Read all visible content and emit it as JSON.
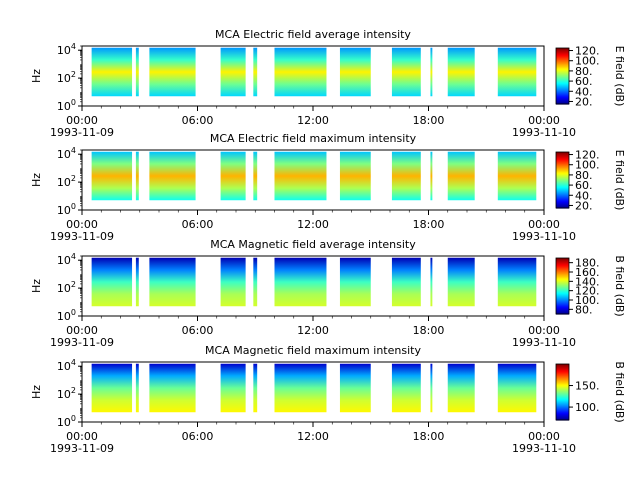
{
  "chart_data": [
    {
      "type": "heatmap",
      "title": "MCA  Electric field average intensity",
      "ylabel": "Hz",
      "y_scale": "log",
      "ylim": [
        1,
        20000
      ],
      "y_ticks": [
        {
          "exp": "0"
        },
        {
          "exp": "2"
        },
        {
          "exp": "4"
        }
      ],
      "xlim": [
        "1993-11-09 00:00",
        "1993-11-10 00:00"
      ],
      "x_ticks": [
        {
          "time": "00:00",
          "date": "1993-11-09"
        },
        {
          "time": "06:00",
          "date": ""
        },
        {
          "time": "12:00",
          "date": ""
        },
        {
          "time": "18:00",
          "date": ""
        },
        {
          "time": "00:00",
          "date": "1993-11-10"
        }
      ],
      "colorbar": {
        "label": "E field (dB)",
        "range": [
          15,
          125
        ],
        "ticks": [
          "20.",
          "40.",
          "60.",
          "80.",
          "100.",
          "120."
        ],
        "ticks_at": [
          20,
          40,
          60,
          80,
          100,
          120
        ]
      },
      "data_segments_hours": [
        [
          0.5,
          2.6
        ],
        [
          2.8,
          2.95
        ],
        [
          3.5,
          5.9
        ],
        [
          7.2,
          8.5
        ],
        [
          8.9,
          9.1
        ],
        [
          10.0,
          12.7
        ],
        [
          13.4,
          15.0
        ],
        [
          16.1,
          17.6
        ],
        [
          18.1,
          18.2
        ],
        [
          19.0,
          20.4
        ],
        [
          21.6,
          23.6
        ]
      ],
      "colormap": "jet",
      "color_by_band": [
        {
          "band": "high",
          "value": 45
        },
        {
          "band": "upper",
          "value": 62
        },
        {
          "band": "middle",
          "value": 85
        },
        {
          "band": "low",
          "value": 68
        },
        {
          "band": "bottom",
          "value": 52
        }
      ]
    },
    {
      "type": "heatmap",
      "title": "MCA  Electric field maximum intensity",
      "ylabel": "Hz",
      "y_scale": "log",
      "ylim": [
        1,
        20000
      ],
      "y_ticks": [
        {
          "exp": "0"
        },
        {
          "exp": "2"
        },
        {
          "exp": "4"
        }
      ],
      "xlim": [
        "1993-11-09 00:00",
        "1993-11-10 00:00"
      ],
      "x_ticks": [
        {
          "time": "00:00",
          "date": "1993-11-09"
        },
        {
          "time": "06:00",
          "date": ""
        },
        {
          "time": "12:00",
          "date": ""
        },
        {
          "time": "18:00",
          "date": ""
        },
        {
          "time": "00:00",
          "date": "1993-11-10"
        }
      ],
      "colorbar": {
        "label": "E field (dB)",
        "range": [
          15,
          125
        ],
        "ticks": [
          "20.",
          "40.",
          "60.",
          "80.",
          "100.",
          "120."
        ],
        "ticks_at": [
          20,
          40,
          60,
          80,
          100,
          120
        ]
      },
      "data_segments_hours": [
        [
          0.5,
          2.6
        ],
        [
          2.8,
          2.95
        ],
        [
          3.5,
          5.9
        ],
        [
          7.2,
          8.5
        ],
        [
          8.9,
          9.1
        ],
        [
          10.0,
          12.7
        ],
        [
          13.4,
          15.0
        ],
        [
          16.1,
          17.6
        ],
        [
          18.1,
          18.2
        ],
        [
          19.0,
          20.4
        ],
        [
          21.6,
          23.6
        ]
      ],
      "colormap": "jet",
      "color_by_band": [
        {
          "band": "high",
          "value": 50
        },
        {
          "band": "upper",
          "value": 70
        },
        {
          "band": "middle",
          "value": 92
        },
        {
          "band": "low",
          "value": 75
        },
        {
          "band": "bottom",
          "value": 58
        }
      ]
    },
    {
      "type": "heatmap",
      "title": "MCA  Magnetic field average intensity",
      "ylabel": "Hz",
      "y_scale": "log",
      "ylim": [
        1,
        20000
      ],
      "y_ticks": [
        {
          "exp": "0"
        },
        {
          "exp": "2"
        },
        {
          "exp": "4"
        }
      ],
      "xlim": [
        "1993-11-09 00:00",
        "1993-11-10 00:00"
      ],
      "x_ticks": [
        {
          "time": "00:00",
          "date": "1993-11-09"
        },
        {
          "time": "06:00",
          "date": ""
        },
        {
          "time": "12:00",
          "date": ""
        },
        {
          "time": "18:00",
          "date": ""
        },
        {
          "time": "00:00",
          "date": "1993-11-10"
        }
      ],
      "colorbar": {
        "label": "B field (dB)",
        "range": [
          70,
          190
        ],
        "ticks": [
          "80.",
          "100.",
          "120.",
          "140.",
          "160.",
          "180."
        ],
        "ticks_at": [
          80,
          100,
          120,
          140,
          160,
          180
        ]
      },
      "data_segments_hours": [
        [
          0.5,
          2.6
        ],
        [
          2.8,
          2.95
        ],
        [
          3.5,
          5.9
        ],
        [
          7.2,
          8.5
        ],
        [
          8.9,
          9.1
        ],
        [
          10.0,
          12.7
        ],
        [
          13.4,
          15.0
        ],
        [
          16.1,
          17.6
        ],
        [
          18.1,
          18.2
        ],
        [
          19.0,
          20.4
        ],
        [
          21.6,
          23.6
        ]
      ],
      "colormap": "jet",
      "color_by_band": [
        {
          "band": "high",
          "value": 76
        },
        {
          "band": "upper",
          "value": 100
        },
        {
          "band": "middle",
          "value": 122
        },
        {
          "band": "low",
          "value": 135
        },
        {
          "band": "bottom",
          "value": 140
        }
      ]
    },
    {
      "type": "heatmap",
      "title": "MCA  Magnetic field maximum intensity",
      "ylabel": "Hz",
      "y_scale": "log",
      "ylim": [
        1,
        20000
      ],
      "y_ticks": [
        {
          "exp": "0"
        },
        {
          "exp": "2"
        },
        {
          "exp": "4"
        }
      ],
      "xlim": [
        "1993-11-09 00:00",
        "1993-11-10 00:00"
      ],
      "x_ticks": [
        {
          "time": "00:00",
          "date": "1993-11-09"
        },
        {
          "time": "06:00",
          "date": ""
        },
        {
          "time": "12:00",
          "date": ""
        },
        {
          "time": "18:00",
          "date": ""
        },
        {
          "time": "00:00",
          "date": "1993-11-10"
        }
      ],
      "colorbar": {
        "label": "B field (dB)",
        "range": [
          70,
          200
        ],
        "ticks": [
          "100.",
          "150."
        ],
        "ticks_at": [
          100,
          150
        ]
      },
      "data_segments_hours": [
        [
          0.5,
          2.6
        ],
        [
          2.8,
          2.95
        ],
        [
          3.5,
          5.9
        ],
        [
          7.2,
          8.5
        ],
        [
          8.9,
          9.1
        ],
        [
          10.0,
          12.7
        ],
        [
          13.4,
          15.0
        ],
        [
          16.1,
          17.6
        ],
        [
          18.1,
          18.2
        ],
        [
          19.0,
          20.4
        ],
        [
          21.6,
          23.6
        ]
      ],
      "colormap": "jet",
      "color_by_band": [
        {
          "band": "high",
          "value": 80
        },
        {
          "band": "upper",
          "value": 108
        },
        {
          "band": "middle",
          "value": 132
        },
        {
          "band": "low",
          "value": 145
        },
        {
          "band": "bottom",
          "value": 152
        }
      ]
    }
  ]
}
